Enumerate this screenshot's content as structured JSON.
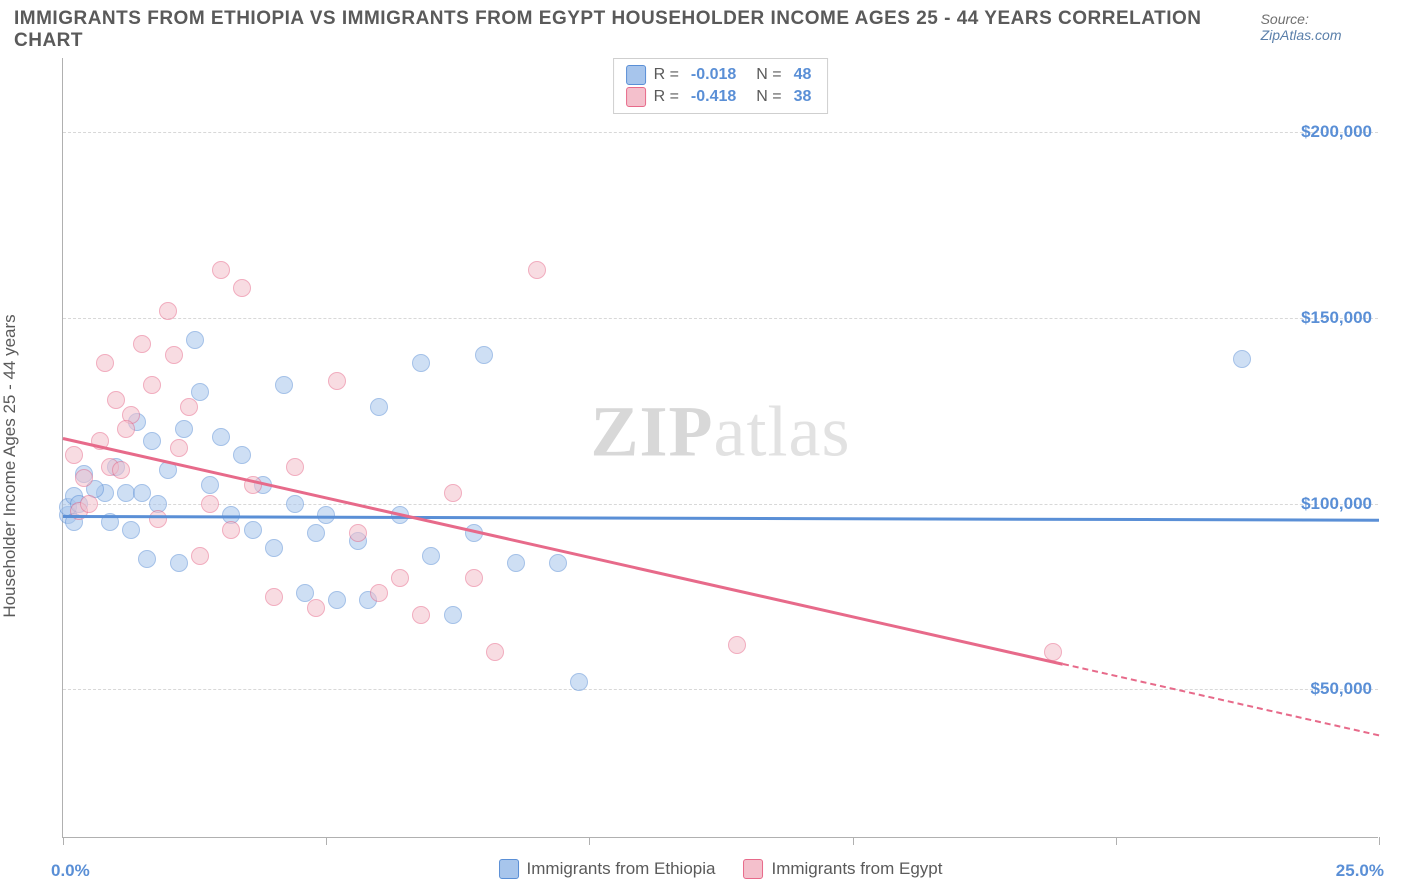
{
  "title": "IMMIGRANTS FROM ETHIOPIA VS IMMIGRANTS FROM EGYPT HOUSEHOLDER INCOME AGES 25 - 44 YEARS CORRELATION CHART",
  "source_prefix": "Source: ",
  "source_link": "ZipAtlas.com",
  "ylabel": "Householder Income Ages 25 - 44 years",
  "watermark_a": "ZIP",
  "watermark_b": "atlas",
  "chart": {
    "type": "scatter",
    "background_color": "#ffffff",
    "grid_color": "#d8d8d8",
    "axis_color": "#b0b0b0",
    "marker_radius": 9,
    "marker_opacity": 0.55,
    "xlim": [
      0,
      25
    ],
    "ylim": [
      10000,
      220000
    ],
    "x_tick_step": 5,
    "x_min_label": "0.0%",
    "x_max_label": "25.0%",
    "y_gridlines": [
      50000,
      100000,
      150000,
      200000
    ],
    "y_gridline_labels": [
      "$50,000",
      "$100,000",
      "$150,000",
      "$200,000"
    ],
    "label_color": "#5a8fd6",
    "label_fontsize": 17,
    "axis_label_color": "#5a5a5a",
    "series": [
      {
        "id": "ethiopia",
        "label": "Immigrants from Ethiopia",
        "fill_color": "#a7c5ec",
        "stroke_color": "#5a8fd6",
        "R": "-0.018",
        "N": "48",
        "trend": {
          "y_at_xmin": 97000,
          "y_at_xmax": 96000,
          "solid_extent_x": 25
        },
        "points": [
          [
            0.1,
            97000
          ],
          [
            0.1,
            99000
          ],
          [
            0.2,
            95000
          ],
          [
            0.2,
            102000
          ],
          [
            0.3,
            100000
          ],
          [
            0.8,
            103000
          ],
          [
            0.9,
            95000
          ],
          [
            1.0,
            110000
          ],
          [
            1.2,
            103000
          ],
          [
            1.3,
            93000
          ],
          [
            1.4,
            122000
          ],
          [
            1.5,
            103000
          ],
          [
            1.6,
            85000
          ],
          [
            1.7,
            117000
          ],
          [
            1.8,
            100000
          ],
          [
            2.0,
            109000
          ],
          [
            2.2,
            84000
          ],
          [
            2.3,
            120000
          ],
          [
            2.5,
            144000
          ],
          [
            2.6,
            130000
          ],
          [
            2.8,
            105000
          ],
          [
            3.0,
            118000
          ],
          [
            3.2,
            97000
          ],
          [
            3.4,
            113000
          ],
          [
            3.6,
            93000
          ],
          [
            3.8,
            105000
          ],
          [
            4.0,
            88000
          ],
          [
            4.2,
            132000
          ],
          [
            4.4,
            100000
          ],
          [
            4.6,
            76000
          ],
          [
            4.8,
            92000
          ],
          [
            5.0,
            97000
          ],
          [
            5.2,
            74000
          ],
          [
            5.6,
            90000
          ],
          [
            5.8,
            74000
          ],
          [
            6.0,
            126000
          ],
          [
            6.4,
            97000
          ],
          [
            6.8,
            138000
          ],
          [
            7.0,
            86000
          ],
          [
            7.4,
            70000
          ],
          [
            7.8,
            92000
          ],
          [
            8.0,
            140000
          ],
          [
            8.6,
            84000
          ],
          [
            9.4,
            84000
          ],
          [
            9.8,
            52000
          ],
          [
            22.4,
            139000
          ],
          [
            0.4,
            108000
          ],
          [
            0.6,
            104000
          ]
        ]
      },
      {
        "id": "egypt",
        "label": "Immigrants from Egypt",
        "fill_color": "#f4c0cc",
        "stroke_color": "#e76a8a",
        "R": "-0.418",
        "N": "38",
        "trend": {
          "y_at_xmin": 118000,
          "y_at_xmax": 38000,
          "solid_extent_x": 19
        },
        "points": [
          [
            0.2,
            113000
          ],
          [
            0.3,
            98000
          ],
          [
            0.4,
            107000
          ],
          [
            0.5,
            100000
          ],
          [
            0.7,
            117000
          ],
          [
            0.8,
            138000
          ],
          [
            0.9,
            110000
          ],
          [
            1.0,
            128000
          ],
          [
            1.1,
            109000
          ],
          [
            1.3,
            124000
          ],
          [
            1.5,
            143000
          ],
          [
            1.7,
            132000
          ],
          [
            1.8,
            96000
          ],
          [
            2.0,
            152000
          ],
          [
            2.2,
            115000
          ],
          [
            2.4,
            126000
          ],
          [
            2.6,
            86000
          ],
          [
            2.8,
            100000
          ],
          [
            3.0,
            163000
          ],
          [
            3.2,
            93000
          ],
          [
            3.4,
            158000
          ],
          [
            3.6,
            105000
          ],
          [
            4.0,
            75000
          ],
          [
            4.4,
            110000
          ],
          [
            4.8,
            72000
          ],
          [
            5.2,
            133000
          ],
          [
            5.6,
            92000
          ],
          [
            6.0,
            76000
          ],
          [
            6.4,
            80000
          ],
          [
            6.8,
            70000
          ],
          [
            7.4,
            103000
          ],
          [
            7.8,
            80000
          ],
          [
            8.2,
            60000
          ],
          [
            9.0,
            163000
          ],
          [
            12.8,
            62000
          ],
          [
            18.8,
            60000
          ],
          [
            1.2,
            120000
          ],
          [
            2.1,
            140000
          ]
        ]
      }
    ]
  }
}
